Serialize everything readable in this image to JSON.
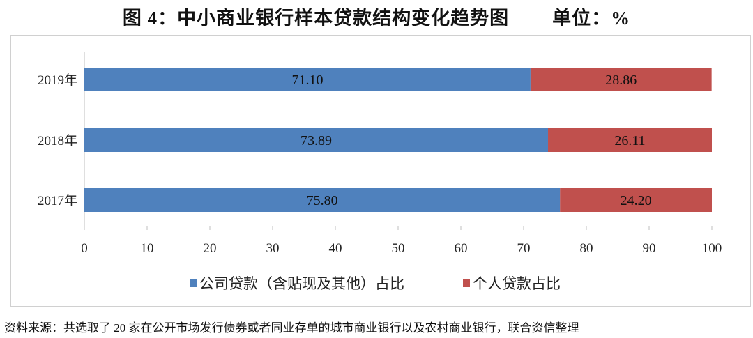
{
  "title": "图 4：中小商业银行样本贷款结构变化趋势图        单位：%",
  "source": "资料来源：共选取了 20 家在公开市场发行债券或者同业存单的城市商业银行以及农村商业银行，联合资信整理",
  "chart_data": {
    "type": "bar",
    "orientation": "horizontal",
    "stacked": true,
    "categories": [
      "2019年",
      "2018年",
      "2017年"
    ],
    "series": [
      {
        "name": "公司贷款（含贴现及其他）占比",
        "values": [
          71.1,
          73.89,
          75.8
        ],
        "labels": [
          "71.10",
          "73.89",
          "75.80"
        ],
        "color": "#4f81bd"
      },
      {
        "name": "个人贷款占比",
        "values": [
          28.86,
          26.11,
          24.2
        ],
        "labels": [
          "28.86",
          "26.11",
          "24.20"
        ],
        "color": "#c0504d"
      }
    ],
    "xlim": [
      0,
      100
    ],
    "xticks": [
      "0",
      "10",
      "20",
      "30",
      "40",
      "50",
      "60",
      "70",
      "80",
      "90",
      "100"
    ],
    "grid": false,
    "legend": "bottom"
  }
}
